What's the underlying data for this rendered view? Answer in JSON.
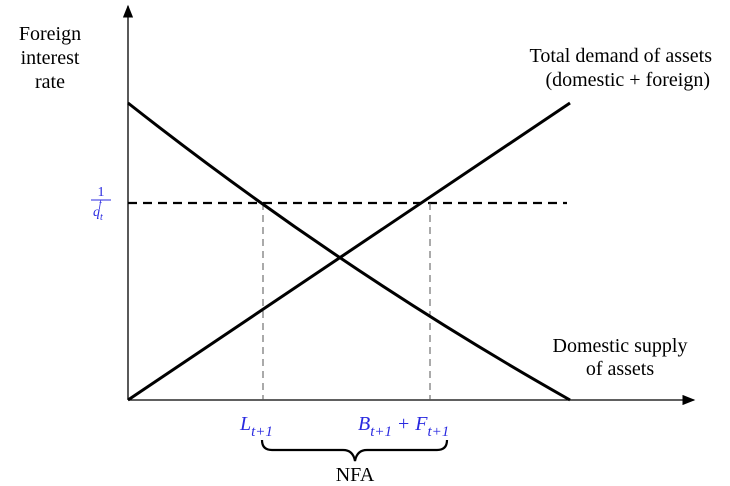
{
  "y_axis_label": [
    "Foreign",
    "interest",
    "rate"
  ],
  "demand_label": [
    "Total demand of assets",
    "(domestic + foreign)"
  ],
  "supply_label": [
    "Domestic supply",
    "of assets"
  ],
  "rate_label": {
    "numerator": "1",
    "base": "q",
    "sub": "t",
    "sup": "f"
  },
  "lower_label": {
    "base": "L",
    "sub": "t+1"
  },
  "upper_label": {
    "terms": [
      {
        "base": "B",
        "sub": "t+1"
      },
      {
        "base": "F",
        "sub": "t+1"
      }
    ],
    "operator": "+"
  },
  "bracket_label": "NFA"
}
